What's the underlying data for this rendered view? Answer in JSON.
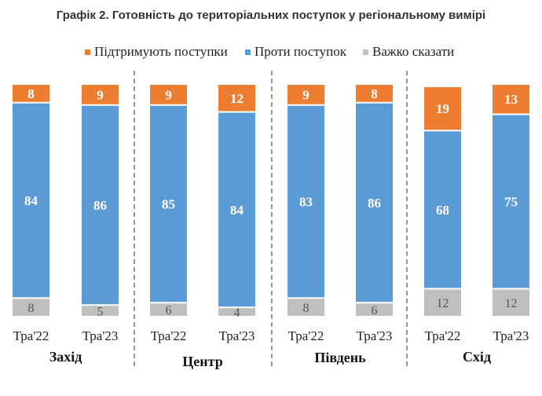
{
  "chart_data": {
    "type": "bar",
    "stacked": true,
    "title": "Графік 2. Готовність до територіальних поступок у регіональному вимірі",
    "legend_position": "top",
    "groups": [
      "Захід",
      "Центр",
      "Південь",
      "Схід"
    ],
    "categories": [
      "Тра'22",
      "Тра'23",
      "Тра'22",
      "Тра'23",
      "Тра'22",
      "Тра'23",
      "Тра'22",
      "Тра'23"
    ],
    "series": [
      {
        "name": "Підтримують поступки",
        "color": "#ED7D31",
        "values": [
          8,
          9,
          9,
          12,
          9,
          8,
          19,
          13
        ]
      },
      {
        "name": "Проти поступок",
        "color": "#5B9BD5",
        "values": [
          84,
          86,
          85,
          84,
          83,
          86,
          68,
          75
        ]
      },
      {
        "name": "Важко сказати",
        "color": "#BFBFBF",
        "values": [
          8,
          5,
          6,
          4,
          8,
          6,
          12,
          12
        ]
      }
    ],
    "ylim": [
      0,
      100
    ],
    "grid": false
  }
}
